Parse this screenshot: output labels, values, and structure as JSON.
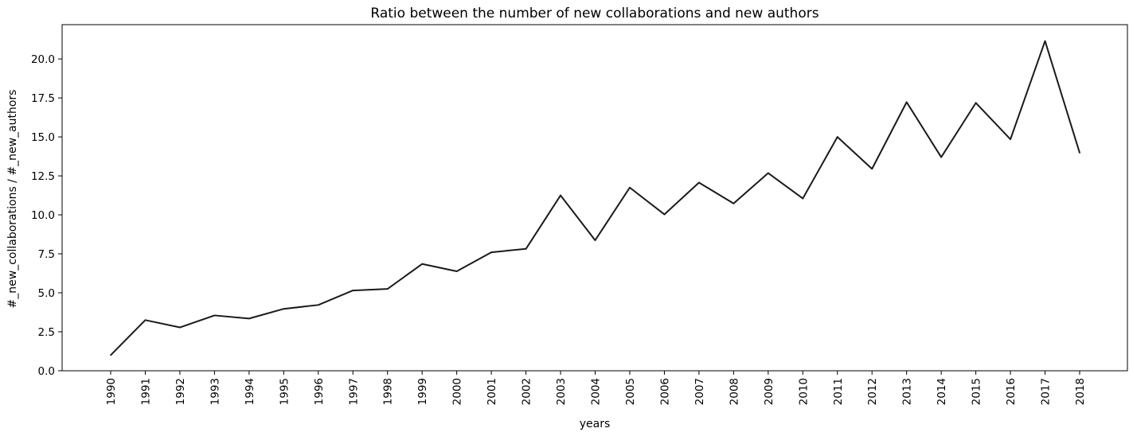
{
  "chart_data": {
    "type": "line",
    "title": "Ratio between the number of new collaborations and new authors",
    "xlabel": "years",
    "ylabel": "#_new_collaborations / #_new_authors",
    "ylim": [
      0,
      22.2
    ],
    "yticks": [
      0.0,
      2.5,
      5.0,
      7.5,
      10.0,
      12.5,
      15.0,
      17.5,
      20.0
    ],
    "ytick_labels": [
      "0.0",
      "2.5",
      "5.0",
      "7.5",
      "10.0",
      "12.5",
      "15.0",
      "17.5",
      "20.0"
    ],
    "grid": false,
    "categories": [
      "1990",
      "1991",
      "1992",
      "1993",
      "1994",
      "1995",
      "1996",
      "1997",
      "1998",
      "1999",
      "2000",
      "2001",
      "2002",
      "2003",
      "2004",
      "2005",
      "2006",
      "2007",
      "2008",
      "2009",
      "2010",
      "2011",
      "2012",
      "2013",
      "2014",
      "2015",
      "2016",
      "2017",
      "2018"
    ],
    "series": [
      {
        "name": "ratio",
        "color": "#1a1a1a",
        "values": [
          1.0,
          3.25,
          2.78,
          3.55,
          3.35,
          3.97,
          4.22,
          5.15,
          5.25,
          6.85,
          6.38,
          7.6,
          7.82,
          11.25,
          8.37,
          11.75,
          10.03,
          12.07,
          10.73,
          12.68,
          11.05,
          15.0,
          12.95,
          17.23,
          13.7,
          17.18,
          14.85,
          21.15,
          13.98
        ]
      }
    ]
  }
}
